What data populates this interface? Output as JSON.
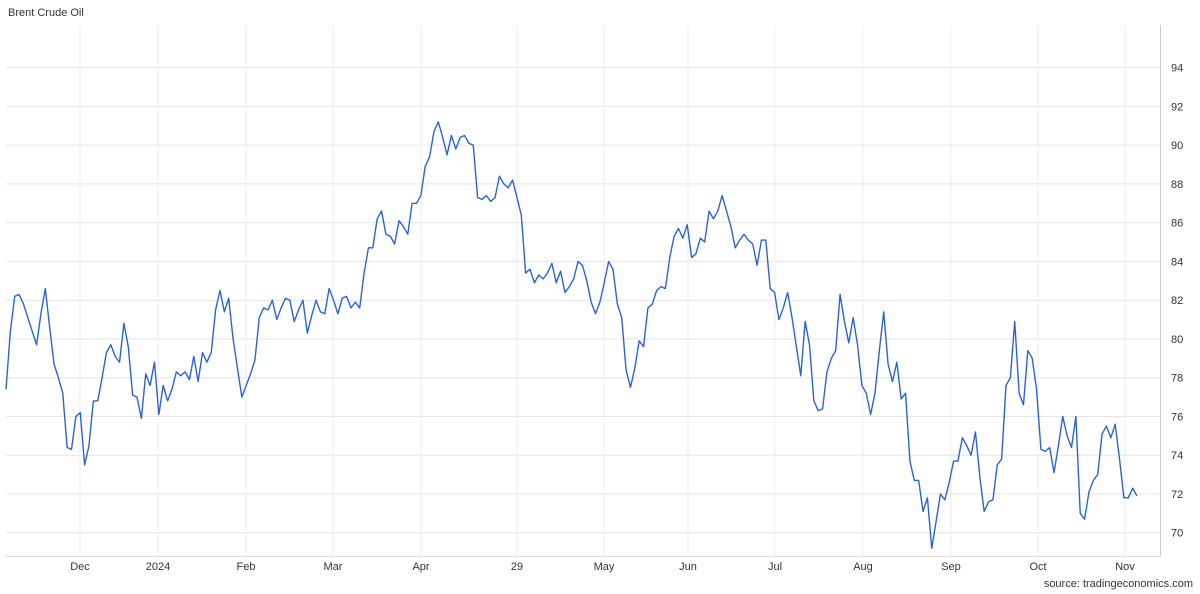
{
  "title": "Brent Crude Oil",
  "source": "source: tradingeconomics.com",
  "chart_data": {
    "type": "line",
    "title": "Brent Crude Oil",
    "xlabel": "",
    "ylabel": "",
    "x_tick_labels": [
      "Dec",
      "2024",
      "Feb",
      "Mar",
      "Apr",
      "29",
      "May",
      "Jun",
      "Jul",
      "Aug",
      "Sep",
      "Oct",
      "Nov"
    ],
    "y_ticks": [
      70,
      72,
      74,
      76,
      78,
      80,
      82,
      84,
      86,
      88,
      90,
      92,
      94
    ],
    "ylim": [
      68.8,
      96.2
    ],
    "grid": true,
    "series_color": "#2b63d6",
    "series": [
      {
        "values": [
          77.4,
          80.4,
          82.2,
          82.3,
          81.8,
          81.1,
          80.4,
          79.7,
          81.3,
          82.6,
          80.6,
          78.7,
          78.0,
          77.2,
          74.4,
          74.3,
          76.0,
          76.2,
          73.5,
          74.5,
          76.8,
          76.8,
          78.0,
          79.3,
          79.7,
          79.1,
          78.8,
          80.8,
          79.6,
          77.1,
          77.0,
          75.9,
          78.2,
          77.6,
          78.8,
          76.1,
          77.6,
          76.8,
          77.4,
          78.3,
          78.1,
          78.3,
          77.9,
          79.1,
          77.8,
          79.3,
          78.8,
          79.3,
          81.5,
          82.5,
          81.4,
          82.1,
          80.0,
          78.5,
          77.0,
          77.6,
          78.2,
          78.9,
          81.1,
          81.6,
          81.5,
          82.0,
          81.0,
          81.6,
          82.1,
          82.0,
          80.9,
          81.5,
          82.0,
          80.3,
          81.2,
          82.0,
          81.4,
          81.3,
          82.6,
          82.0,
          81.3,
          82.1,
          82.2,
          81.6,
          81.9,
          81.6,
          83.4,
          84.7,
          84.7,
          86.2,
          86.6,
          85.4,
          85.3,
          84.9,
          86.1,
          85.8,
          85.4,
          87.0,
          87.0,
          87.4,
          88.9,
          89.4,
          90.7,
          91.2,
          90.4,
          89.5,
          90.5,
          89.8,
          90.4,
          90.5,
          90.1,
          90.0,
          87.3,
          87.2,
          87.4,
          87.1,
          87.3,
          88.4,
          88.0,
          87.8,
          88.2,
          87.3,
          86.4,
          83.4,
          83.6,
          82.9,
          83.3,
          83.1,
          83.4,
          83.9,
          82.9,
          83.5,
          82.4,
          82.7,
          83.1,
          84.0,
          83.8,
          83.0,
          81.9,
          81.3,
          81.9,
          82.9,
          84.0,
          83.6,
          81.8,
          81.1,
          78.4,
          77.5,
          78.5,
          79.9,
          79.6,
          81.6,
          81.8,
          82.5,
          82.7,
          82.6,
          84.2,
          85.3,
          85.7,
          85.2,
          85.9,
          84.2,
          84.4,
          85.2,
          85.0,
          86.6,
          86.2,
          86.6,
          87.4,
          86.6,
          85.8,
          84.7,
          85.1,
          85.4,
          85.1,
          84.9,
          83.8,
          85.1,
          85.1,
          82.6,
          82.4,
          81.0,
          81.6,
          82.4,
          81.1,
          79.6,
          78.1,
          80.9,
          79.7,
          76.8,
          76.3,
          76.4,
          78.3,
          79.0,
          79.4,
          82.3,
          80.9,
          79.8,
          81.1,
          79.7,
          77.6,
          77.2,
          76.1,
          77.2,
          79.4,
          81.4,
          78.7,
          77.8,
          78.8,
          76.9,
          77.2,
          73.7,
          72.7,
          72.7,
          71.1,
          71.8,
          69.2,
          70.6,
          72.0,
          71.7,
          72.6,
          73.7,
          73.7,
          74.9,
          74.5,
          74.0,
          75.2,
          72.9,
          71.1,
          71.6,
          71.7,
          73.5,
          73.8,
          77.6,
          78.0,
          80.9,
          77.2,
          76.6,
          79.4,
          79.0,
          77.4,
          74.3,
          74.2,
          74.4,
          73.1,
          74.5,
          76.0,
          75.0,
          74.4,
          76.0,
          71.0,
          70.7,
          72.1,
          72.7,
          73.0,
          75.1,
          75.5,
          74.9,
          75.6,
          73.8,
          71.8,
          71.8,
          72.3,
          71.9
        ]
      }
    ]
  }
}
